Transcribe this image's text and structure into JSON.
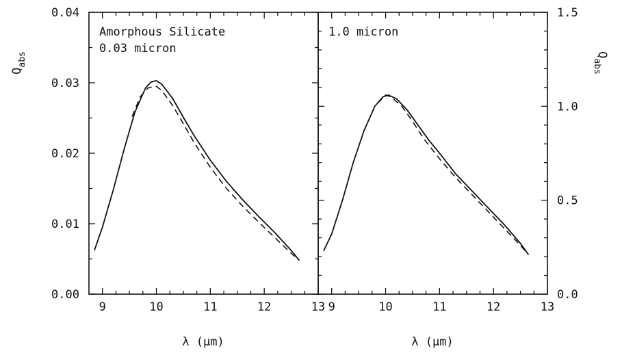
{
  "chart_data": [
    {
      "type": "line",
      "annotation_lines": [
        "Amorphous Silicate",
        "0.03 micron"
      ],
      "xlabel": "λ (μm)",
      "ylabel": "Q",
      "ylabel_sub": "abs",
      "xlim": [
        8.75,
        13
      ],
      "ylim": [
        0,
        0.04
      ],
      "x_ticks": [
        "9",
        "10",
        "11",
        "12",
        "13"
      ],
      "y_ticks": [
        "0.00",
        "0.01",
        "0.02",
        "0.03",
        "0.04"
      ],
      "series": [
        {
          "style": "solid",
          "x": [
            8.85,
            9.0,
            9.2,
            9.4,
            9.6,
            9.8,
            9.9,
            10.0,
            10.1,
            10.3,
            10.5,
            10.7,
            11.0,
            11.3,
            11.6,
            11.9,
            12.2,
            12.5,
            12.65
          ],
          "y": [
            0.0062,
            0.0095,
            0.0148,
            0.0205,
            0.0258,
            0.0293,
            0.0301,
            0.0303,
            0.0298,
            0.0278,
            0.0251,
            0.0225,
            0.019,
            0.016,
            0.0134,
            0.011,
            0.0087,
            0.0062,
            0.0048
          ]
        },
        {
          "style": "dashed",
          "x": [
            9.55,
            9.7,
            9.85,
            10.0,
            10.1,
            10.3,
            10.5,
            10.7,
            11.0,
            11.3,
            11.6,
            11.9,
            12.2,
            12.5,
            12.65
          ],
          "y": [
            0.0252,
            0.028,
            0.0293,
            0.0295,
            0.0289,
            0.0268,
            0.0242,
            0.0215,
            0.018,
            0.015,
            0.0125,
            0.0102,
            0.008,
            0.0058,
            0.0048
          ]
        }
      ]
    },
    {
      "type": "line",
      "annotation_lines": [
        "1.0 micron"
      ],
      "xlabel": "λ (μm)",
      "ylabel": "Q",
      "ylabel_sub": "abs",
      "xlim": [
        8.75,
        13
      ],
      "ylim": [
        0,
        1.5
      ],
      "x_ticks": [
        "9",
        "10",
        "11",
        "12",
        "13"
      ],
      "y_ticks": [
        "0.0",
        "0.5",
        "1.0",
        "1.5"
      ],
      "series": [
        {
          "style": "solid",
          "x": [
            8.85,
            9.0,
            9.2,
            9.4,
            9.6,
            9.8,
            9.95,
            10.05,
            10.2,
            10.4,
            10.6,
            10.8,
            11.0,
            11.3,
            11.6,
            11.9,
            12.2,
            12.5,
            12.65
          ],
          "y": [
            0.23,
            0.32,
            0.5,
            0.7,
            0.87,
            1.0,
            1.05,
            1.06,
            1.04,
            0.98,
            0.9,
            0.82,
            0.75,
            0.64,
            0.55,
            0.46,
            0.37,
            0.27,
            0.21
          ]
        },
        {
          "style": "dashed",
          "x": [
            9.6,
            9.8,
            10.0,
            10.1,
            10.3,
            10.5,
            10.7,
            11.0,
            11.3,
            11.6,
            11.9,
            12.2,
            12.5,
            12.65
          ],
          "y": [
            0.87,
            1.0,
            1.06,
            1.05,
            1.0,
            0.92,
            0.83,
            0.72,
            0.62,
            0.53,
            0.44,
            0.35,
            0.26,
            0.21
          ]
        }
      ]
    }
  ]
}
